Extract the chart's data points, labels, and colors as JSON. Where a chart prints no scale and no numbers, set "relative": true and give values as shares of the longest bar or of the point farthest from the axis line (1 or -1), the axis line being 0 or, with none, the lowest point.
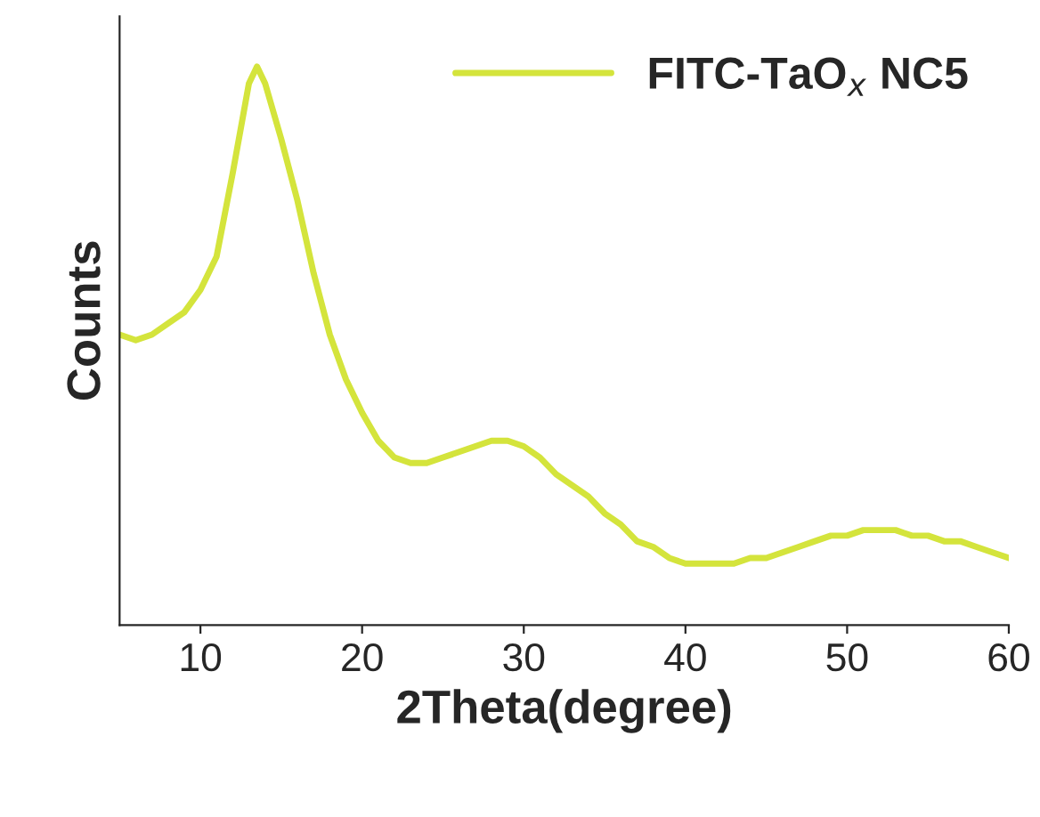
{
  "chart_data": {
    "type": "line",
    "relative": true,
    "xlabel": "2Theta(degree)",
    "ylabel": "Counts",
    "x": [
      5,
      6,
      7,
      8,
      9,
      10,
      11,
      12,
      12.5,
      13,
      13.5,
      14,
      15,
      16,
      17,
      18,
      19,
      20,
      21,
      22,
      23,
      24,
      25,
      26,
      27,
      28,
      29,
      30,
      31,
      32,
      33,
      34,
      35,
      36,
      37,
      38,
      39,
      40,
      41,
      42,
      43,
      44,
      45,
      46,
      47,
      48,
      49,
      50,
      51,
      52,
      53,
      54,
      55,
      56,
      57,
      58,
      59,
      60
    ],
    "series": [
      {
        "name": "FITC-TaO$_{x}$ NC5",
        "color": "#d4e43c",
        "values": [
          0.52,
          0.51,
          0.52,
          0.54,
          0.56,
          0.6,
          0.66,
          0.81,
          0.89,
          0.97,
          1,
          0.97,
          0.87,
          0.76,
          0.63,
          0.52,
          0.44,
          0.38,
          0.33,
          0.3,
          0.29,
          0.29,
          0.3,
          0.31,
          0.32,
          0.33,
          0.33,
          0.32,
          0.3,
          0.27,
          0.25,
          0.23,
          0.2,
          0.18,
          0.15,
          0.14,
          0.12,
          0.11,
          0.11,
          0.11,
          0.11,
          0.12,
          0.12,
          0.13,
          0.14,
          0.15,
          0.16,
          0.16,
          0.17,
          0.17,
          0.17,
          0.16,
          0.16,
          0.15,
          0.15,
          0.14,
          0.13,
          0.12
        ]
      }
    ],
    "xlim": [
      5,
      60
    ],
    "xticks": [
      10,
      20,
      30,
      40,
      50,
      60
    ],
    "legend": "top right",
    "grid": false,
    "line_style": "solid",
    "marker": "none"
  }
}
